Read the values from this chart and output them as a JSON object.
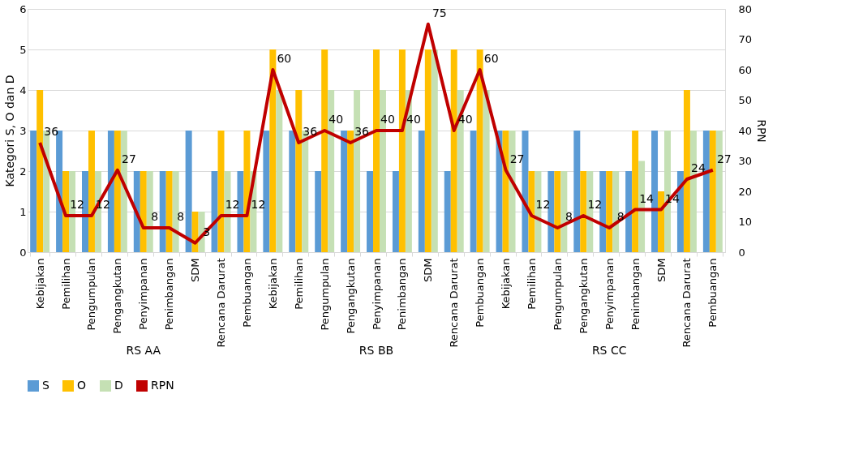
{
  "chart_data": {
    "type": "bar",
    "ylabel": "Kategori S, O dan D",
    "y2label": "RPN",
    "categories": [
      "Kebijakan",
      "Pemilihan",
      "Pengumpulan",
      "Pengangkutan",
      "Penyimpanan",
      "Penimbangan",
      "SDM",
      "Rencana Darurat",
      "Pembuangan",
      "Kebijakan",
      "Pemilihan",
      "Pengumpulan",
      "Pengangkutan",
      "Penyimpanan",
      "Penimbangan",
      "SDM",
      "Rencana Darurat",
      "Pembuangan",
      "Kebijakan",
      "Pemilihan",
      "Pengumpulan",
      "Pengangkutan",
      "Penyimpanan",
      "Penimbangan",
      "SDM",
      "Rencana Darurat",
      "Pembuangan"
    ],
    "series": [
      {
        "name": "S",
        "color": "#5b9bd5",
        "values": [
          3,
          3,
          2,
          3,
          2,
          2,
          3,
          2,
          2,
          3,
          3,
          2,
          3,
          2,
          2,
          3,
          2,
          3,
          3,
          3,
          2,
          3,
          2,
          2,
          3,
          2,
          3
        ]
      },
      {
        "name": "O",
        "color": "#ffc000",
        "values": [
          4,
          2,
          3,
          3,
          2,
          2,
          1,
          3,
          3,
          5,
          4,
          5,
          3,
          5,
          5,
          5,
          5,
          5,
          3,
          2,
          2,
          2,
          2,
          3,
          1.5,
          4,
          3
        ]
      },
      {
        "name": "D",
        "color": "#c5e0b4",
        "values": [
          3,
          2,
          2,
          3,
          2,
          2,
          1,
          2,
          2,
          4,
          3,
          4,
          4,
          4,
          4,
          5,
          4,
          4,
          3,
          2,
          2,
          2,
          2,
          2.25,
          3,
          3,
          3
        ]
      },
      {
        "name": "RPN",
        "type": "line",
        "axis": "y2",
        "color": "#c00000",
        "values": [
          36,
          12,
          12,
          27,
          8,
          8,
          3,
          12,
          12,
          60,
          36,
          40,
          36,
          40,
          40,
          75,
          40,
          60,
          27,
          12,
          8,
          12,
          8,
          14,
          14,
          24,
          27
        ],
        "value_labels": [
          "36",
          "12",
          "12",
          "27",
          "8",
          "8",
          "3",
          "12",
          "12",
          "60",
          "36",
          "40",
          "36",
          "40",
          "40",
          "75",
          "40",
          "60",
          "27",
          "12",
          "8",
          "12",
          "8",
          "14",
          "14",
          "24",
          "27"
        ]
      }
    ],
    "ylim": [
      0,
      6
    ],
    "yticks": [
      0,
      1,
      2,
      3,
      4,
      5,
      6
    ],
    "y2lim": [
      0,
      80
    ],
    "y2ticks": [
      0,
      10,
      20,
      30,
      40,
      50,
      60,
      70,
      80
    ],
    "annotations": [
      "RS AA",
      "RS BB",
      "RS CC"
    ],
    "grid": "y",
    "legend": "bottom"
  }
}
